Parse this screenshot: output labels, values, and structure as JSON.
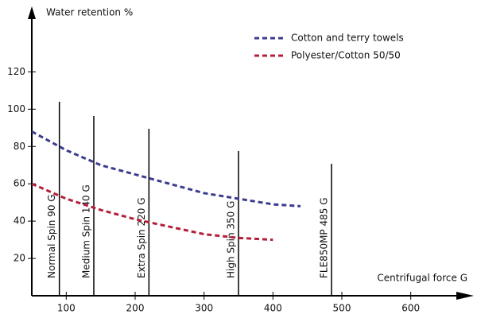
{
  "chart_data": {
    "type": "line",
    "title": "Water retention %",
    "x_label": "Centrifugal force G",
    "x": [
      50,
      100,
      150,
      200,
      250,
      300,
      350,
      400,
      440
    ],
    "series": [
      {
        "name": "Cotton and terry towels",
        "color": "#3b3b8f",
        "values": [
          88,
          78,
          70,
          65,
          60,
          55,
          52,
          49,
          48
        ]
      },
      {
        "name": "Polyester/Cotton 50/50",
        "color": "#b3203c",
        "values": [
          60,
          52,
          46,
          41,
          37,
          33,
          31,
          30,
          null
        ]
      }
    ],
    "markers": [
      {
        "x": 90,
        "label": "Normal Spin 90 G"
      },
      {
        "x": 140,
        "label": "Medium Spin 140 G"
      },
      {
        "x": 220,
        "label": "Extra Spin 220 G"
      },
      {
        "x": 350,
        "label": "High Spin 350 G"
      },
      {
        "x": 485,
        "label": "FLE850MP 485 G"
      }
    ],
    "xlim": [
      50,
      680
    ],
    "ylim": [
      0,
      150
    ],
    "xticks": [
      100,
      200,
      300,
      400,
      500,
      600
    ],
    "yticks": [
      20,
      40,
      60,
      80,
      100,
      120
    ],
    "grid": false,
    "legend": "top-right"
  }
}
